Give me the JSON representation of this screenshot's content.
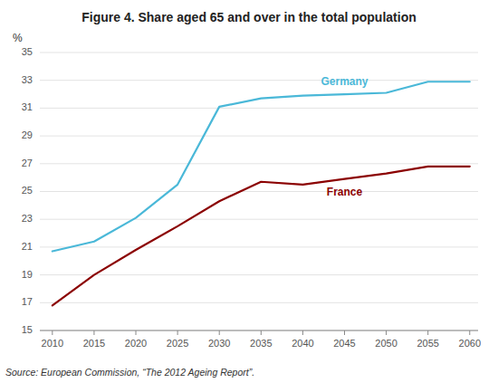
{
  "chart_data": {
    "type": "line",
    "title": "Figure 4. Share aged 65 and over in the total population",
    "ylabel": "%",
    "annotations": [
      "Source: European Commission, “The 2012 Ageing Report”."
    ],
    "x": [
      2010,
      2015,
      2020,
      2025,
      2030,
      2035,
      2040,
      2045,
      2050,
      2055,
      2060
    ],
    "series": [
      {
        "name": "Germany",
        "color": "#4ab8d8",
        "values": [
          20.7,
          21.4,
          23.1,
          25.5,
          31.1,
          31.7,
          31.9,
          32.0,
          32.1,
          32.9,
          32.9
        ]
      },
      {
        "name": "France",
        "color": "#8b0000",
        "values": [
          16.8,
          19.0,
          20.8,
          22.5,
          24.3,
          25.7,
          25.5,
          25.9,
          26.3,
          26.8,
          26.8
        ]
      }
    ],
    "xlim": [
      2008.5,
      2061
    ],
    "xticks": [
      2010,
      2015,
      2020,
      2025,
      2030,
      2035,
      2040,
      2045,
      2050,
      2055,
      2060
    ],
    "ylim": [
      15,
      35
    ],
    "yticks": [
      15,
      17,
      19,
      21,
      23,
      25,
      27,
      29,
      31,
      33,
      35
    ],
    "grid": true
  }
}
